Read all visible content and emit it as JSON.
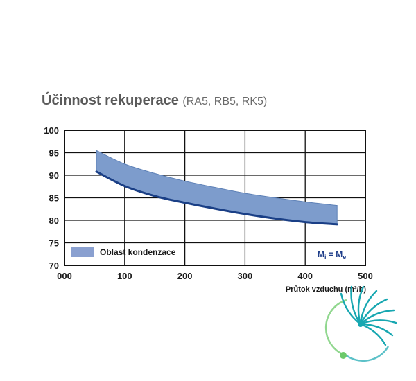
{
  "title": {
    "main": "Účinnost rekuperace",
    "sub": "(RA5, RB5, RK5)"
  },
  "colors": {
    "band_fill": "#7d9ccc",
    "band_edge": "#5d80b6",
    "line": "#1a3f86",
    "legend_swatch": "#8aa0d0",
    "equation": "#1f3e8a",
    "logo": "#17a7b1",
    "logo_light": "#6cc96a"
  },
  "chart_data": {
    "type": "area",
    "xlabel": "Průtok vzduchu (m³/h)",
    "ylabel": "",
    "xlim": [
      0,
      500
    ],
    "ylim": [
      70,
      100
    ],
    "x_ticks": [
      "000",
      "100",
      "200",
      "300",
      "400",
      "500"
    ],
    "y_ticks": [
      "70",
      "75",
      "80",
      "85",
      "90",
      "95",
      "100"
    ],
    "grid": true,
    "legend": {
      "position": "bottom-left",
      "label": "Oblast kondenzace"
    },
    "annotation": {
      "position": "bottom-right",
      "text_m1": "M",
      "sub1": "i",
      "eq": " = ",
      "text_m2": "M",
      "sub2": "e"
    },
    "series": [
      {
        "name": "Oblast kondenzace",
        "kind": "band",
        "x": [
          53,
          100,
          150,
          200,
          250,
          300,
          350,
          400,
          453
        ],
        "upper": [
          95.5,
          92.5,
          90.4,
          88.7,
          87.3,
          86.0,
          85.0,
          84.1,
          83.3
        ],
        "lower": [
          90.8,
          87.6,
          85.4,
          83.9,
          82.6,
          81.4,
          80.4,
          79.6,
          79.1
        ]
      },
      {
        "kind": "line",
        "x": [
          53,
          100,
          150,
          200,
          250,
          300,
          350,
          400,
          453
        ],
        "y": [
          90.8,
          87.6,
          85.4,
          83.9,
          82.6,
          81.4,
          80.4,
          79.6,
          79.1
        ]
      }
    ]
  }
}
